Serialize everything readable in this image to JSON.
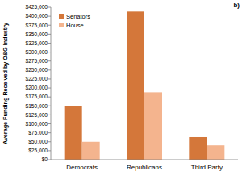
{
  "chart_data": {
    "type": "bar",
    "y_label": "Average Funding Received by O&G Industry",
    "annotations": [
      "b)"
    ],
    "categories": [
      "Democrats",
      "Republicans",
      "Third Party"
    ],
    "series": [
      {
        "name": "Senators",
        "color": "#d4773a",
        "values": [
          150000,
          413000,
          63000
        ]
      },
      {
        "name": "House",
        "color": "#f4b48e",
        "values": [
          50000,
          188000,
          40000
        ]
      }
    ],
    "ylim": [
      0,
      425000
    ],
    "yticks": [
      {
        "value": 0,
        "label": "$0"
      },
      {
        "value": 25000,
        "label": "$25,000"
      },
      {
        "value": 50000,
        "label": "$50,000"
      },
      {
        "value": 75000,
        "label": "$75,000"
      },
      {
        "value": 100000,
        "label": "$100,000"
      },
      {
        "value": 125000,
        "label": "$125,000"
      },
      {
        "value": 150000,
        "label": "$150,000"
      },
      {
        "value": 175000,
        "label": "$175,000"
      },
      {
        "value": 200000,
        "label": "$200,000"
      },
      {
        "value": 225000,
        "label": "$225,000"
      },
      {
        "value": 250000,
        "label": "$250,000"
      },
      {
        "value": 275000,
        "label": "$275,000"
      },
      {
        "value": 300000,
        "label": "$300,000"
      },
      {
        "value": 325000,
        "label": "$325,000"
      },
      {
        "value": 350000,
        "label": "$350,000"
      },
      {
        "value": 375000,
        "label": "$375,000"
      },
      {
        "value": 400000,
        "label": "$400,000"
      },
      {
        "value": 425000,
        "label": "$425,000"
      }
    ],
    "grid": false,
    "legend": "upper-left"
  }
}
